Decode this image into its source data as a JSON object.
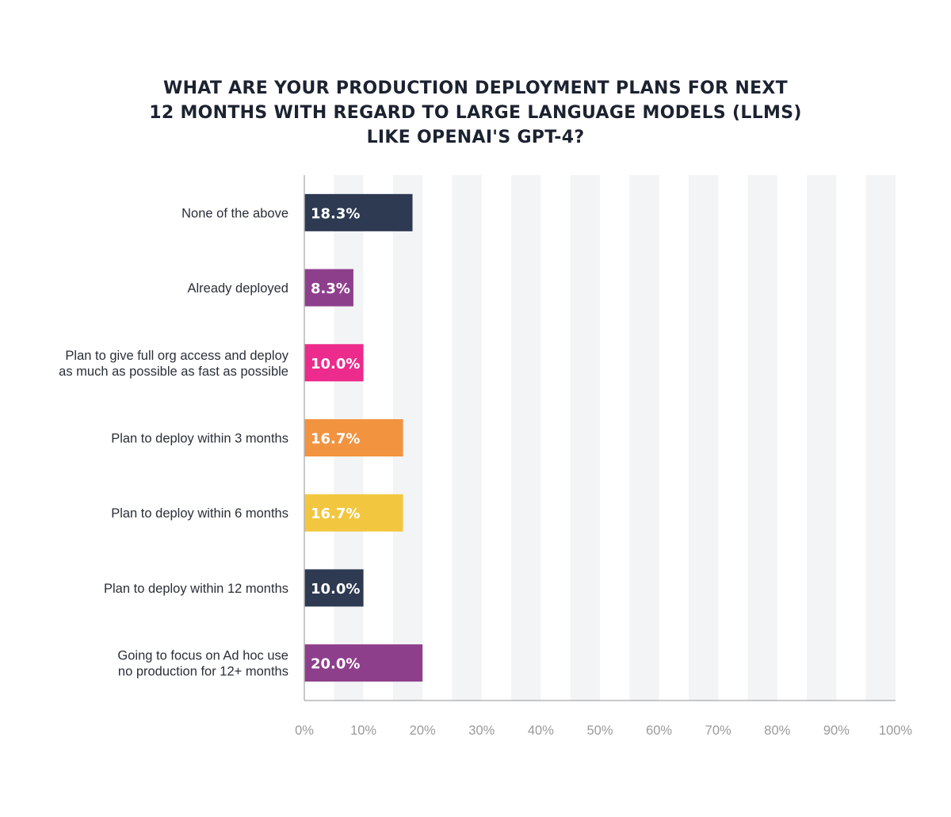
{
  "chart_data": {
    "type": "bar",
    "orientation": "horizontal",
    "title_lines": [
      "WHAT ARE YOUR PRODUCTION DEPLOYMENT PLANS FOR NEXT",
      "12 MONTHS WITH REGARD TO LARGE LANGUAGE MODELS (LLMS)",
      "LIKE OPENAI'S GPT-4?"
    ],
    "categories": [
      [
        "None of the above"
      ],
      [
        "Already deployed"
      ],
      [
        "Plan to give full org access and deploy",
        "as much as possible as fast as possible"
      ],
      [
        "Plan to deploy within 3 months"
      ],
      [
        "Plan to deploy within 6 months"
      ],
      [
        "Plan to deploy within 12 months"
      ],
      [
        "Going to focus on Ad hoc use",
        "no production for 12+ months"
      ]
    ],
    "values": [
      18.3,
      8.3,
      10.0,
      16.7,
      16.7,
      10.0,
      20.0
    ],
    "value_labels": [
      "18.3%",
      "8.3%",
      "10.0%",
      "16.7%",
      "16.7%",
      "10.0%",
      "20.0%"
    ],
    "colors": [
      "#2d3a52",
      "#8e3f8c",
      "#ec2b8c",
      "#f29340",
      "#f2c73f",
      "#2d3a52",
      "#8e3f8c"
    ],
    "xlim": [
      0,
      100
    ],
    "xticks": [
      "0%",
      "10%",
      "20%",
      "30%",
      "40%",
      "50%",
      "60%",
      "70%",
      "80%",
      "90%",
      "100%"
    ],
    "grid": "alternating vertical bands",
    "band_color": "#f3f4f5",
    "axis_color": "#b5b5b5"
  }
}
